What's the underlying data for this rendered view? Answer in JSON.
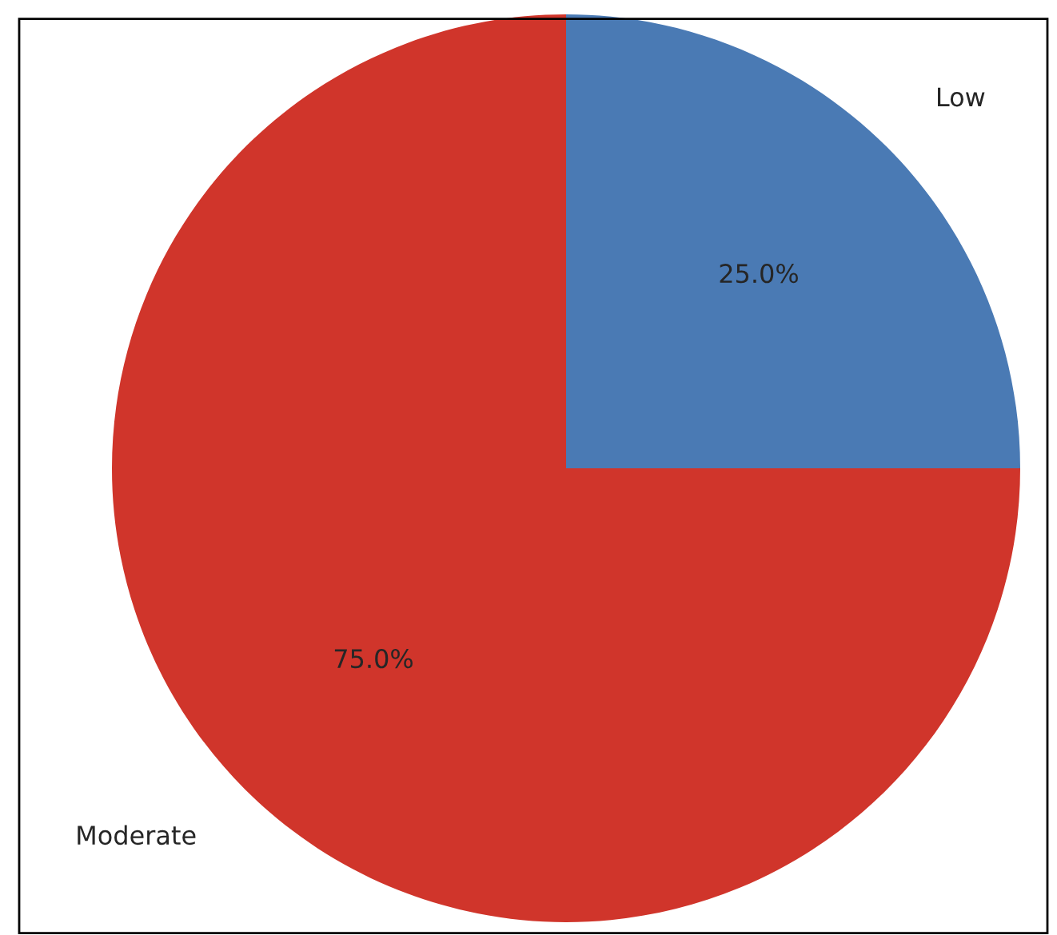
{
  "chart_data": {
    "type": "pie",
    "categories": [
      "Low",
      "Moderate"
    ],
    "values": [
      25,
      75
    ],
    "value_labels": [
      "25.0%",
      "75.0%"
    ],
    "colors": [
      "#4a7ab4",
      "#d0352b"
    ]
  }
}
